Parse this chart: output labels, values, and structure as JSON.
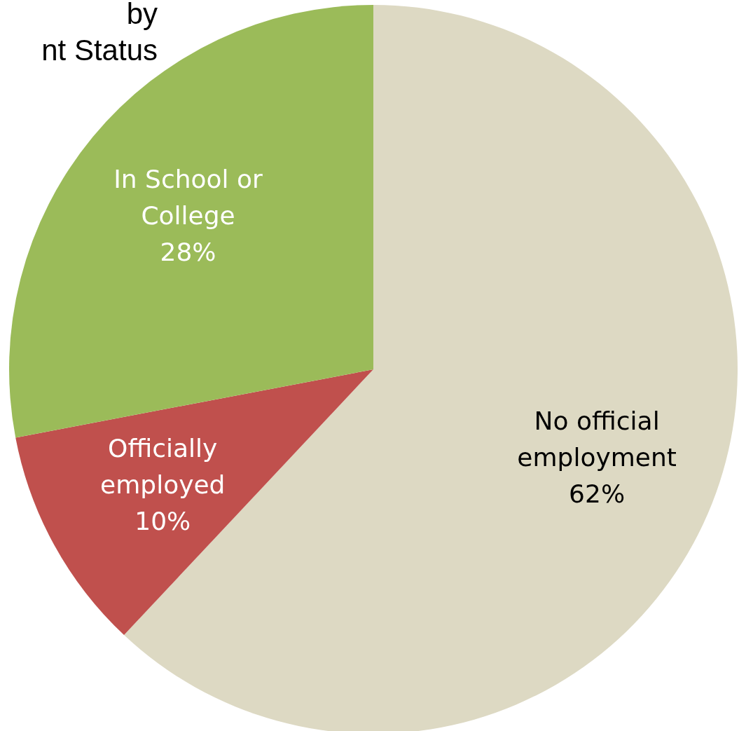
{
  "chart_data": {
    "type": "pie",
    "title": "by\nnt Status",
    "categories": [
      "No official employment",
      "Officially employed",
      "In School or College"
    ],
    "values": [
      62,
      10,
      28
    ],
    "value_labels": [
      "62%",
      "10%",
      "28%"
    ],
    "colors": [
      "#ddd9c3",
      "#c0504d",
      "#9bbb59"
    ]
  }
}
